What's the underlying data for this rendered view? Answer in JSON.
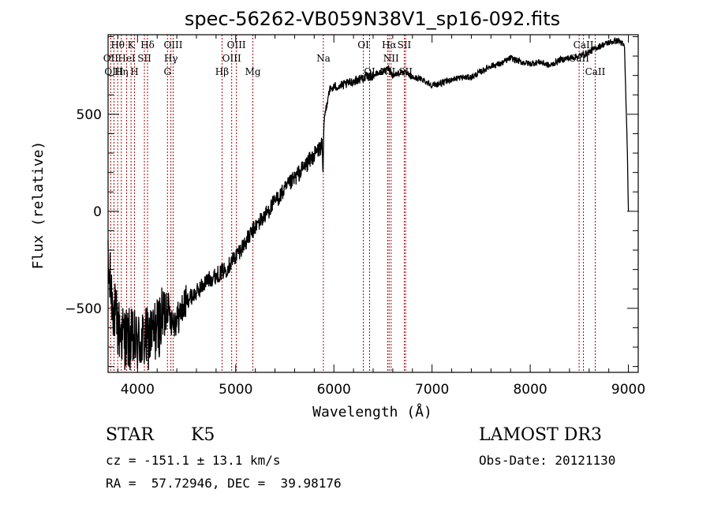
{
  "chart_data": {
    "type": "line",
    "title": "spec-56262-VB059N38V1_sp16-092.fits",
    "xlabel": "Wavelength (Å)",
    "ylabel": "Flux (relative)",
    "xlim": [
      3700,
      9100
    ],
    "ylim": [
      -830,
      910
    ],
    "xticks": [
      4000,
      5000,
      6000,
      7000,
      8000,
      9000
    ],
    "yticks": [
      -500,
      0,
      500
    ],
    "series": [
      {
        "name": "flux",
        "x": [
          3700,
          3750,
          3800,
          3850,
          3900,
          3950,
          4000,
          4050,
          4100,
          4150,
          4200,
          4250,
          4300,
          4350,
          4400,
          4500,
          4600,
          4700,
          4800,
          4900,
          5000,
          5100,
          5200,
          5300,
          5400,
          5500,
          5600,
          5700,
          5800,
          5880,
          5890,
          5900,
          5950,
          6000,
          6100,
          6200,
          6300,
          6400,
          6500,
          6560,
          6600,
          6700,
          6800,
          6900,
          7000,
          7100,
          7200,
          7300,
          7400,
          7500,
          7600,
          7700,
          7800,
          7900,
          8000,
          8100,
          8200,
          8300,
          8400,
          8500,
          8600,
          8700,
          8800,
          8900,
          8960,
          8990,
          9000
        ],
        "y": [
          -300,
          -480,
          -600,
          -640,
          -660,
          -670,
          -680,
          -670,
          -660,
          -640,
          -600,
          -560,
          -480,
          -560,
          -560,
          -460,
          -420,
          -360,
          -330,
          -300,
          -230,
          -160,
          -80,
          -20,
          50,
          110,
          170,
          230,
          290,
          340,
          160,
          470,
          620,
          640,
          650,
          670,
          690,
          700,
          720,
          740,
          700,
          720,
          690,
          680,
          650,
          660,
          680,
          690,
          690,
          720,
          750,
          760,
          790,
          770,
          760,
          770,
          750,
          780,
          790,
          800,
          820,
          850,
          870,
          880,
          850,
          300,
          0
        ]
      }
    ],
    "spectral_lines": [
      {
        "label": "Hθ",
        "wavelength": 3798,
        "row": 0
      },
      {
        "label": "K",
        "wavelength": 3934,
        "row": 0
      },
      {
        "label": "Hδ",
        "wavelength": 4102,
        "row": 0
      },
      {
        "label": "OIII",
        "wavelength": 4363,
        "row": 0
      },
      {
        "label": "OIII",
        "wavelength": 5007,
        "row": 0
      },
      {
        "label": "OI",
        "wavelength": 6300,
        "row": 0
      },
      {
        "label": "Hα",
        "wavelength": 6563,
        "row": 0
      },
      {
        "label": "SII",
        "wavelength": 6717,
        "row": 0
      },
      {
        "label": "CaII",
        "wavelength": 8542,
        "row": 0
      },
      {
        "label": "OII",
        "wavelength": 3727,
        "row": 1
      },
      {
        "label": "HeI",
        "wavelength": 3889,
        "row": 1
      },
      {
        "label": "SII",
        "wavelength": 4070,
        "row": 1
      },
      {
        "label": "Hγ",
        "wavelength": 4340,
        "row": 1
      },
      {
        "label": "OIII",
        "wavelength": 4959,
        "row": 1
      },
      {
        "label": "Na",
        "wavelength": 5893,
        "row": 1
      },
      {
        "label": "NII",
        "wavelength": 6583,
        "row": 1
      },
      {
        "label": "CaII",
        "wavelength": 8498,
        "row": 1
      },
      {
        "label": "OIII",
        "wavelength": 3760,
        "row": 2
      },
      {
        "label": "Hη",
        "wavelength": 3835,
        "row": 2
      },
      {
        "label": "H",
        "wavelength": 3969,
        "row": 2
      },
      {
        "label": "G",
        "wavelength": 4305,
        "row": 2
      },
      {
        "label": "Hβ",
        "wavelength": 4861,
        "row": 2
      },
      {
        "label": "Mg",
        "wavelength": 5175,
        "row": 2
      },
      {
        "label": "OI",
        "wavelength": 6364,
        "row": 2
      },
      {
        "label": "NII",
        "wavelength": 6548,
        "row": 2
      },
      {
        "label": "SII",
        "wavelength": 6731,
        "row": 2
      },
      {
        "label": "CaII",
        "wavelength": 8662,
        "row": 2
      }
    ]
  },
  "info": {
    "class_label": "STAR",
    "subclass_label": "K5",
    "cz_text": "cz = -151.1 ± 13.1 km/s",
    "radec_text": "RA =  57.72946, DEC =  39.98176",
    "survey": "LAMOST DR3",
    "obs_date_text": "Obs-Date: 20121130"
  },
  "colors": {
    "spectrum": "#000000",
    "line_marker": "#b00000"
  }
}
